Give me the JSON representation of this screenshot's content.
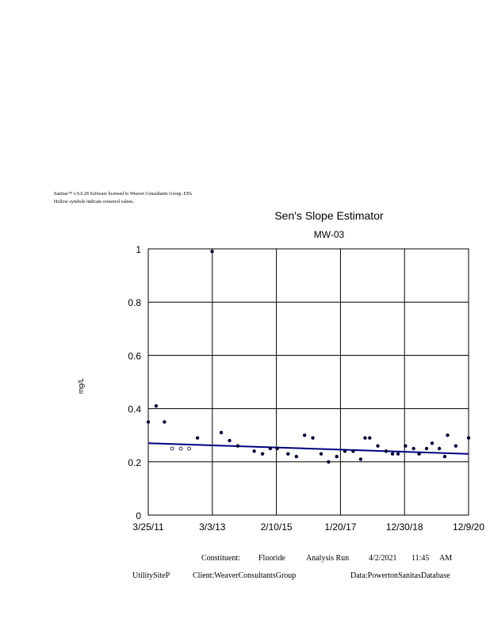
{
  "header": {
    "line1": "Sanitas™      v.9.6.28      Software      licensed      to    Weaver      Consultants      Group.      EPA",
    "line2": "Hollow      symbols        indicate       censored          values."
  },
  "footer": {
    "constituent": "Constituent:",
    "constituent_value": "Fluoride",
    "analysis_run": "Analysis    Run",
    "date": "4/2/2021",
    "time": "11:45",
    "ampm": "AM",
    "site": "UtilitySiteP",
    "client": "Client:WeaverConsultantsGroup",
    "data": "Data:PowertonSanitasDatabase"
  },
  "colors": {
    "trend": "#000080",
    "points": "#000033"
  },
  "chart_data": {
    "type": "scatter",
    "title": "Sen's Slope Estimator",
    "subtitle": "MW-03",
    "ylabel": "mg/L",
    "xlabel": "",
    "ylim": [
      0,
      1
    ],
    "yticks": [
      "0",
      "0.2",
      "0.4",
      "0.6",
      "0.8",
      "1"
    ],
    "xticks": [
      "3/25/11",
      "3/3/13",
      "2/10/15",
      "1/20/17",
      "12/30/18",
      "12/9/20"
    ],
    "xrange": [
      "3/25/11",
      "12/9/20"
    ],
    "grid": true,
    "series": [
      {
        "points": [
          {
            "x": "2011-03-25",
            "y": 0.35
          },
          {
            "x": "2011-06-20",
            "y": 0.41
          },
          {
            "x": "2011-09-20",
            "y": 0.35
          },
          {
            "x": "2011-12-15",
            "y": 0.25,
            "censored": true
          },
          {
            "x": "2012-03-20",
            "y": 0.25,
            "censored": true
          },
          {
            "x": "2012-06-20",
            "y": 0.25,
            "censored": true
          },
          {
            "x": "2012-09-20",
            "y": 0.29
          },
          {
            "x": "2013-03-01",
            "y": 0.99
          },
          {
            "x": "2013-06-10",
            "y": 0.31
          },
          {
            "x": "2013-09-10",
            "y": 0.28
          },
          {
            "x": "2013-12-10",
            "y": 0.26
          },
          {
            "x": "2014-06-10",
            "y": 0.24
          },
          {
            "x": "2014-09-10",
            "y": 0.23
          },
          {
            "x": "2014-12-05",
            "y": 0.25
          },
          {
            "x": "2015-02-20",
            "y": 0.25
          },
          {
            "x": "2015-06-20",
            "y": 0.23
          },
          {
            "x": "2015-09-20",
            "y": 0.22
          },
          {
            "x": "2015-12-20",
            "y": 0.3
          },
          {
            "x": "2016-03-20",
            "y": 0.29
          },
          {
            "x": "2016-06-20",
            "y": 0.23
          },
          {
            "x": "2016-09-10",
            "y": 0.2
          },
          {
            "x": "2016-12-10",
            "y": 0.22
          },
          {
            "x": "2017-03-10",
            "y": 0.24
          },
          {
            "x": "2017-06-10",
            "y": 0.24
          },
          {
            "x": "2017-09-01",
            "y": 0.21
          },
          {
            "x": "2017-10-20",
            "y": 0.29
          },
          {
            "x": "2017-12-10",
            "y": 0.29
          },
          {
            "x": "2018-03-10",
            "y": 0.26
          },
          {
            "x": "2018-06-10",
            "y": 0.24
          },
          {
            "x": "2018-08-20",
            "y": 0.23
          },
          {
            "x": "2018-10-20",
            "y": 0.23
          },
          {
            "x": "2019-01-10",
            "y": 0.26
          },
          {
            "x": "2019-04-10",
            "y": 0.25
          },
          {
            "x": "2019-06-10",
            "y": 0.23
          },
          {
            "x": "2019-09-01",
            "y": 0.25
          },
          {
            "x": "2019-11-01",
            "y": 0.27
          },
          {
            "x": "2020-01-20",
            "y": 0.25
          },
          {
            "x": "2020-03-20",
            "y": 0.22
          },
          {
            "x": "2020-04-20",
            "y": 0.3
          },
          {
            "x": "2020-07-20",
            "y": 0.26
          },
          {
            "x": "2020-12-09",
            "y": 0.29
          }
        ]
      }
    ],
    "trend_line": {
      "start": {
        "x": "2011-03-25",
        "y": 0.27
      },
      "end": {
        "x": "2020-12-09",
        "y": 0.23
      }
    }
  }
}
